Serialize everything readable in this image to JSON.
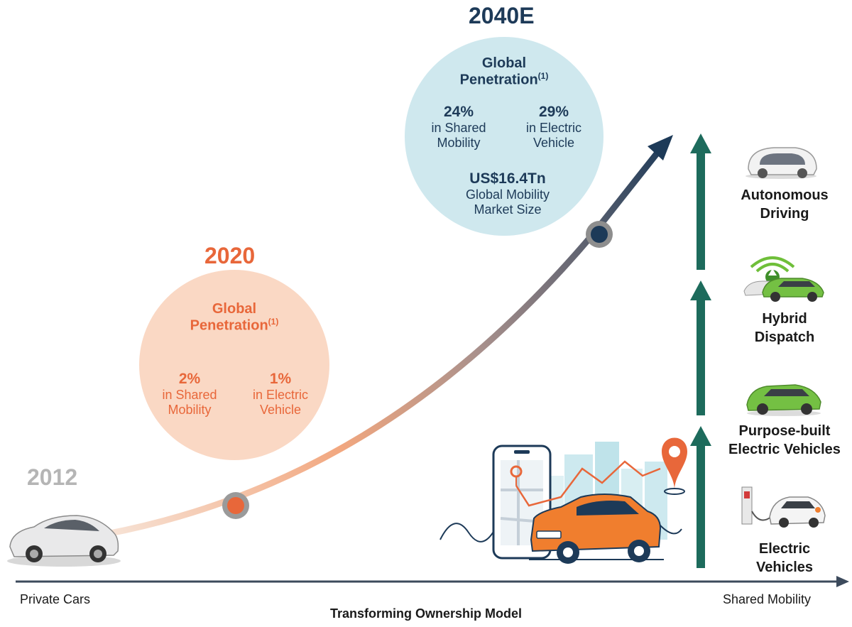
{
  "colors": {
    "orange": "#e8673a",
    "peach": "#fad8c4",
    "navy": "#1d3a58",
    "lightblue": "#cfe8ee",
    "grey": "#b5b5b5",
    "teal": "#1d6b5c",
    "axis": "#3c4a5c"
  },
  "y2012": {
    "year": "2012",
    "caption": "Private Cars"
  },
  "y2020": {
    "year": "2020",
    "title_line1": "Global",
    "title_line2": "Penetration",
    "footnote": "(1)",
    "stat1": {
      "value": "2%",
      "line1": "in Shared",
      "line2": "Mobility"
    },
    "stat2": {
      "value": "1%",
      "line1": "in Electric",
      "line2": "Vehicle"
    }
  },
  "y2040": {
    "year": "2040E",
    "title_line1": "Global",
    "title_line2": "Penetration",
    "footnote": "(1)",
    "stat1": {
      "value": "24%",
      "line1": "in Shared",
      "line2": "Mobility"
    },
    "stat2": {
      "value": "29%",
      "line1": "in Electric",
      "line2": "Vehicle"
    },
    "market_value": "US$16.4Tn",
    "market_line1": "Global Mobility",
    "market_line2": "Market Size"
  },
  "axis": {
    "left": "Private Cars",
    "right": "Shared Mobility",
    "title": "Transforming Ownership Model"
  },
  "stages": [
    {
      "line1": "Autonomous",
      "line2": "Driving",
      "icon": "autonomous-pod-icon"
    },
    {
      "line1": "Hybrid",
      "line2": "Dispatch",
      "icon": "hybrid-dispatch-car-icon"
    },
    {
      "line1": "Purpose-built",
      "line2": "Electric Vehicles",
      "icon": "green-ev-car-icon"
    },
    {
      "line1": "Electric",
      "line2": "Vehicles",
      "icon": "charging-car-icon"
    }
  ]
}
